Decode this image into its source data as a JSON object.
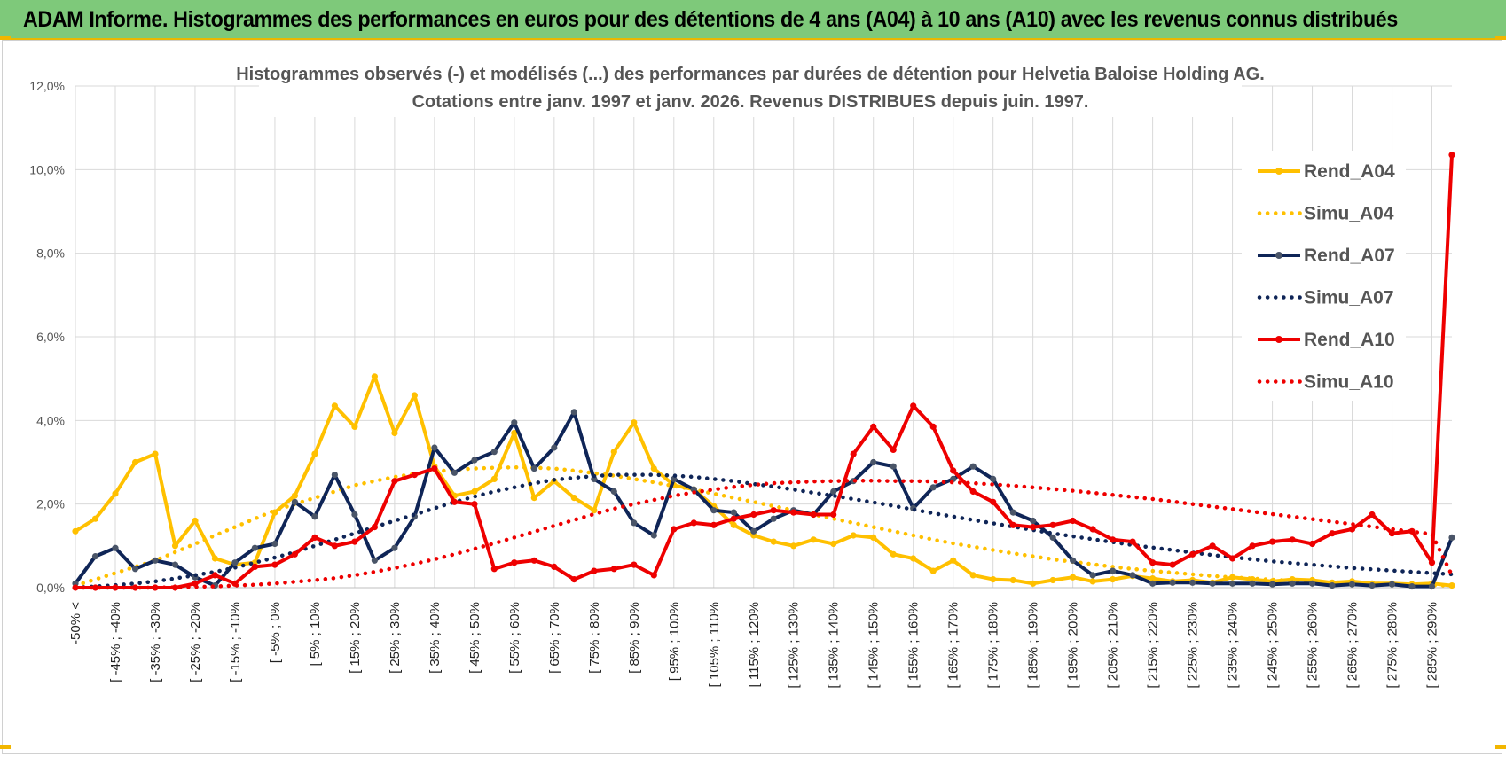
{
  "header": {
    "title": "ADAM Informe. Histogrammes des performances en euros pour des détentions de 4 ans (A04) à 10 ans (A10) avec les revenus connus distribués"
  },
  "chart_data": {
    "type": "line",
    "title_line1": "Histogrammes observés (-) et modélisés (...) des performances par durées de détention pour Helvetia Baloise Holding AG.",
    "title_line2": "Cotations entre janv. 1997 et janv. 2026. Revenus DISTRIBUES depuis juin. 1997.",
    "ylim": [
      0,
      12
    ],
    "yticks": [
      "0,0%",
      "2,0%",
      "4,0%",
      "6,0%",
      "8,0%",
      "10,0%",
      "12,0%"
    ],
    "grid": true,
    "legend_position": "right",
    "x_labels": [
      "-50% <",
      "[ -45% ; -40%",
      "[ -35% ; -30%",
      "[ -25% ; -20%",
      "[ -15% ; -10%",
      "[ -5% ; 0%",
      "[ 5% ; 10%",
      "[ 15% ; 20%",
      "[ 25% ; 30%",
      "[ 35% ; 40%",
      "[ 45% ; 50%",
      "[ 55% ; 60%",
      "[ 65% ; 70%",
      "[ 75% ; 80%",
      "[ 85% ; 90%",
      "[ 95% ; 100%",
      "[ 105% ; 110%",
      "[ 115% ; 120%",
      "[ 125% ; 130%",
      "[ 135% ; 140%",
      "[ 145% ; 150%",
      "[ 155% ; 160%",
      "[ 165% ; 170%",
      "[ 175% ; 180%",
      "[ 185% ; 190%",
      "[ 195% ; 200%",
      "[ 205% ; 210%",
      "[ 215% ; 220%",
      "[ 225% ; 230%",
      "[ 235% ; 240%",
      "[ 245% ; 250%",
      "[ 255% ; 260%",
      "[ 265% ; 270%",
      "[ 275% ; 280%",
      "[ 285% ; 290%"
    ],
    "series": [
      {
        "name": "Rend_A04",
        "color": "#ffc000",
        "style": "solid",
        "values": [
          1.35,
          1.65,
          2.25,
          3.0,
          3.2,
          1.0,
          1.6,
          0.7,
          0.55,
          0.6,
          1.8,
          2.2,
          3.2,
          4.35,
          3.85,
          5.05,
          3.7,
          4.6,
          2.9,
          2.2,
          2.3,
          2.6,
          3.7,
          2.15,
          2.55,
          2.15,
          1.85,
          3.25,
          3.95,
          2.85,
          2.45,
          2.35,
          1.95,
          1.5,
          1.25,
          1.1,
          1.0,
          1.15,
          1.05,
          1.25,
          1.2,
          0.8,
          0.7,
          0.4,
          0.65,
          0.3,
          0.2,
          0.18,
          0.1,
          0.18,
          0.25,
          0.15,
          0.2,
          0.28,
          0.22,
          0.15,
          0.18,
          0.12,
          0.25,
          0.2,
          0.15,
          0.2,
          0.18,
          0.12,
          0.15,
          0.1,
          0.1,
          0.08,
          0.1,
          0.05
        ]
      },
      {
        "name": "Simu_A04",
        "color": "#ffc000",
        "style": "dotted",
        "values": [
          0.05,
          0.2,
          0.35,
          0.5,
          0.65,
          0.85,
          1.05,
          1.25,
          1.45,
          1.65,
          1.85,
          2.0,
          2.15,
          2.3,
          2.45,
          2.55,
          2.65,
          2.72,
          2.78,
          2.82,
          2.85,
          2.87,
          2.88,
          2.87,
          2.85,
          2.8,
          2.74,
          2.68,
          2.6,
          2.52,
          2.43,
          2.35,
          2.25,
          2.15,
          2.05,
          1.95,
          1.85,
          1.75,
          1.65,
          1.55,
          1.45,
          1.35,
          1.25,
          1.15,
          1.06,
          0.98,
          0.9,
          0.82,
          0.75,
          0.68,
          0.62,
          0.56,
          0.5,
          0.45,
          0.4,
          0.36,
          0.32,
          0.28,
          0.25,
          0.22,
          0.19,
          0.17,
          0.15,
          0.13,
          0.11,
          0.1,
          0.08,
          0.07,
          0.06,
          0.05
        ]
      },
      {
        "name": "Rend_A07",
        "color": "#0f2557",
        "style": "solid",
        "values": [
          0.1,
          0.75,
          0.95,
          0.45,
          0.65,
          0.55,
          0.25,
          0.05,
          0.6,
          0.95,
          1.05,
          2.05,
          1.7,
          2.7,
          1.75,
          0.65,
          0.95,
          1.7,
          3.35,
          2.75,
          3.05,
          3.25,
          3.95,
          2.85,
          3.35,
          4.2,
          2.6,
          2.3,
          1.55,
          1.25,
          2.6,
          2.35,
          1.85,
          1.8,
          1.35,
          1.65,
          1.85,
          1.75,
          2.3,
          2.55,
          3.0,
          2.9,
          1.9,
          2.4,
          2.6,
          2.9,
          2.6,
          1.8,
          1.6,
          1.2,
          0.65,
          0.3,
          0.4,
          0.3,
          0.1,
          0.12,
          0.12,
          0.1,
          0.1,
          0.1,
          0.08,
          0.1,
          0.1,
          0.05,
          0.08,
          0.05,
          0.08,
          0.03,
          0.03,
          1.2
        ]
      },
      {
        "name": "Simu_A07",
        "color": "#0f2557",
        "style": "dotted",
        "values": [
          0.0,
          0.03,
          0.06,
          0.1,
          0.15,
          0.22,
          0.3,
          0.38,
          0.48,
          0.6,
          0.72,
          0.85,
          1.0,
          1.15,
          1.3,
          1.45,
          1.6,
          1.75,
          1.9,
          2.05,
          2.18,
          2.3,
          2.4,
          2.5,
          2.58,
          2.63,
          2.67,
          2.7,
          2.7,
          2.7,
          2.68,
          2.65,
          2.6,
          2.55,
          2.48,
          2.42,
          2.35,
          2.27,
          2.2,
          2.12,
          2.04,
          1.96,
          1.87,
          1.78,
          1.7,
          1.62,
          1.54,
          1.46,
          1.38,
          1.3,
          1.23,
          1.16,
          1.09,
          1.02,
          0.96,
          0.9,
          0.84,
          0.78,
          0.73,
          0.68,
          0.63,
          0.59,
          0.55,
          0.51,
          0.47,
          0.44,
          0.41,
          0.38,
          0.35,
          0.32
        ]
      },
      {
        "name": "Rend_A10",
        "color": "#ee0000",
        "style": "solid",
        "values": [
          0.0,
          0.0,
          0.0,
          0.0,
          0.0,
          0.0,
          0.1,
          0.3,
          0.1,
          0.5,
          0.55,
          0.8,
          1.2,
          1.0,
          1.1,
          1.45,
          2.55,
          2.7,
          2.85,
          2.05,
          2.0,
          0.45,
          0.6,
          0.65,
          0.5,
          0.2,
          0.4,
          0.45,
          0.55,
          0.3,
          1.4,
          1.55,
          1.5,
          1.65,
          1.75,
          1.85,
          1.8,
          1.75,
          1.75,
          3.2,
          3.85,
          3.3,
          4.35,
          3.85,
          2.8,
          2.3,
          2.05,
          1.5,
          1.45,
          1.5,
          1.6,
          1.4,
          1.15,
          1.1,
          0.6,
          0.55,
          0.8,
          1.0,
          0.7,
          1.0,
          1.1,
          1.15,
          1.05,
          1.3,
          1.4,
          1.75,
          1.3,
          1.35,
          0.6,
          10.35
        ]
      },
      {
        "name": "Simu_A10",
        "color": "#ee0000",
        "style": "dotted",
        "values": [
          0.0,
          0.0,
          0.0,
          0.0,
          0.0,
          0.01,
          0.02,
          0.03,
          0.05,
          0.07,
          0.1,
          0.14,
          0.18,
          0.23,
          0.3,
          0.38,
          0.47,
          0.57,
          0.68,
          0.8,
          0.93,
          1.06,
          1.2,
          1.34,
          1.48,
          1.62,
          1.76,
          1.89,
          2.0,
          2.1,
          2.2,
          2.28,
          2.35,
          2.41,
          2.46,
          2.5,
          2.52,
          2.54,
          2.55,
          2.56,
          2.56,
          2.55,
          2.55,
          2.54,
          2.52,
          2.5,
          2.47,
          2.44,
          2.4,
          2.36,
          2.32,
          2.27,
          2.22,
          2.17,
          2.12,
          2.06,
          2.0,
          1.94,
          1.88,
          1.82,
          1.76,
          1.7,
          1.64,
          1.58,
          1.52,
          1.46,
          1.4,
          1.34,
          1.28,
          0.3
        ]
      }
    ]
  }
}
